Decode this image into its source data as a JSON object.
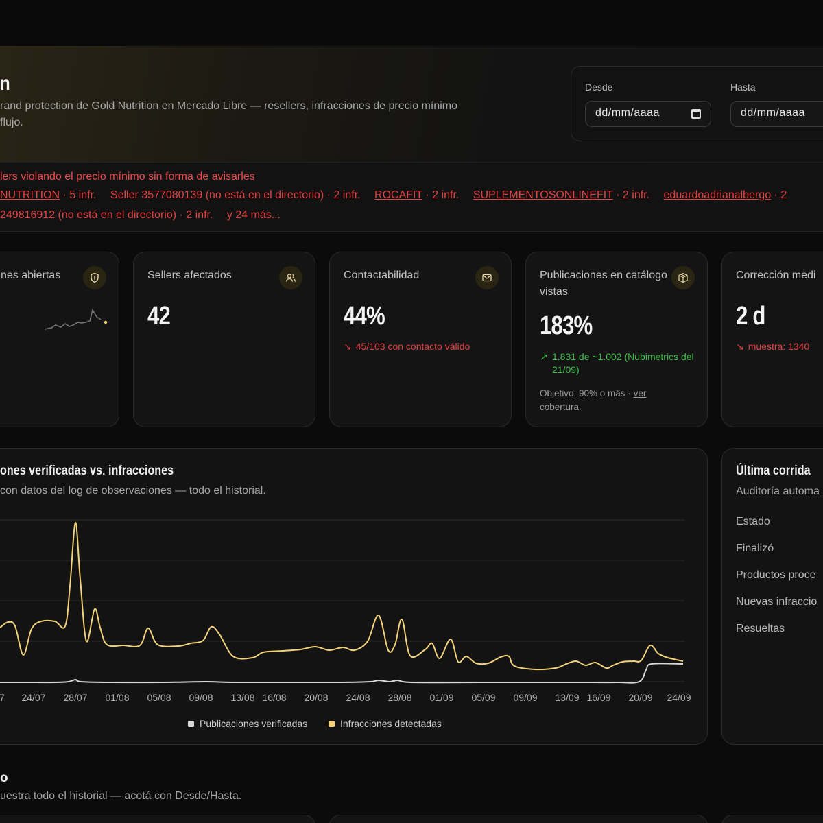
{
  "hero": {
    "title": "n",
    "subtitle_line1": "rand protection de Gold Nutrition en Mercado Libre — resellers, infracciones de precio mínimo",
    "subtitle_line2": "flujo."
  },
  "date_filter": {
    "from_label": "Desde",
    "from_value": "dd/mm/aaaa",
    "to_label": "Hasta",
    "to_value": "dd/mm/aaaa"
  },
  "alert": {
    "title": "lers violando el precio mínimo sin forma de avisarles",
    "items": [
      {
        "link": "NUTRITION",
        "text": " · 5 infr."
      },
      {
        "link": "",
        "text": "Seller 3577080139 (no está en el directorio) · 2 infr."
      },
      {
        "link": "ROCAFIT",
        "text": " · 2 infr."
      },
      {
        "link": "SUPLEMENTOSONLINEFIT",
        "text": " · 2 infr."
      },
      {
        "link": "eduardoadrianalbergo",
        "text": " · 2"
      }
    ],
    "line2": "249816912 (no está en el directorio) · 2 infr.",
    "more": "y 24 más..."
  },
  "kpis": [
    {
      "label": "nes abiertas",
      "icon": "shield-icon"
    },
    {
      "label": "Sellers afectados",
      "value": "42",
      "icon": "users-icon"
    },
    {
      "label": "Contactabilidad",
      "value": "44%",
      "delta": "45/103 con contacto válido",
      "icon": "mail-icon"
    },
    {
      "label": "Publicaciones en catálogo vistas",
      "value": "183%",
      "delta": "1.831 de ~1.002 (Nubimetrics del 21/09)",
      "note": "Objetivo: 90% o más · ",
      "note_link": "ver cobertura",
      "icon": "package-icon"
    },
    {
      "label": "Corrección medi",
      "value": "2 d",
      "delta": "muestra: 1340"
    }
  ],
  "chart": {
    "title": "ones verificadas vs. infracciones",
    "subtitle": "con datos del log de observaciones — todo el historial.",
    "legend": [
      "Publicaciones verificadas",
      "Infracciones detectadas"
    ]
  },
  "chart_data": {
    "type": "line",
    "x": [
      "7",
      "24/07",
      "28/07",
      "01/08",
      "05/08",
      "09/08",
      "13/08",
      "16/08",
      "20/08",
      "24/08",
      "28/08",
      "01/09",
      "05/09",
      "09/09",
      "13/09",
      "16/09",
      "20/09",
      "24/09"
    ],
    "series": [
      {
        "name": "Publicaciones verificadas",
        "color": "#d9d9d9"
      },
      {
        "name": "Infracciones detectadas",
        "color": "#f2d27a"
      }
    ],
    "grid": true
  },
  "side": {
    "title": "Última corrida",
    "subtitle": "Auditoría automa",
    "rows": [
      "Estado",
      "Finalizó",
      "Productos proce",
      "Nuevas infraccio",
      "Resueltas"
    ]
  },
  "bottom": {
    "title": "o",
    "subtitle": "uestra todo el historial — acotá con Desde/Hasta."
  }
}
